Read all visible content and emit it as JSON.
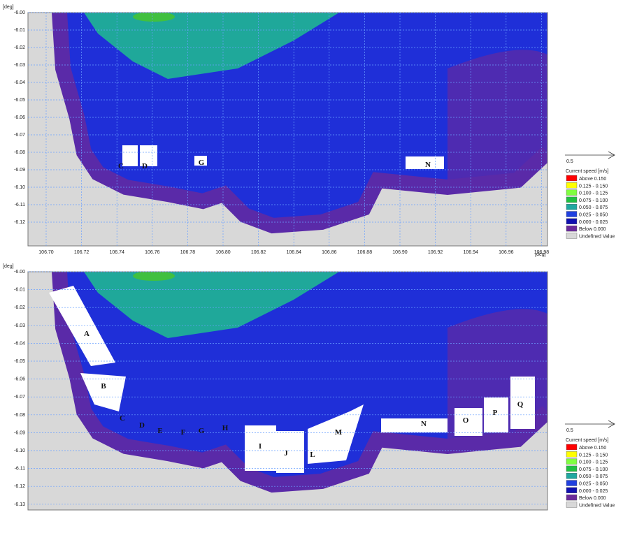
{
  "panels": [
    {
      "y_unit": "[deg]",
      "x_unit": "[deg]",
      "yticks": [
        {
          "value": -6.0,
          "label": "-6.00"
        },
        {
          "value": -6.01,
          "label": "-6.01"
        },
        {
          "value": -6.02,
          "label": "-6.02"
        },
        {
          "value": -6.03,
          "label": "-6.03"
        },
        {
          "value": -6.04,
          "label": "-6.04"
        },
        {
          "value": -6.05,
          "label": "-6.05"
        },
        {
          "value": -6.06,
          "label": "-6.06"
        },
        {
          "value": -6.07,
          "label": "-6.07"
        },
        {
          "value": -6.08,
          "label": "-6.08"
        },
        {
          "value": -6.09,
          "label": "-6.09"
        },
        {
          "value": -6.1,
          "label": "-6.10"
        },
        {
          "value": -6.11,
          "label": "-6.11"
        },
        {
          "value": -6.12,
          "label": "-6.12"
        }
      ],
      "xticks": [
        {
          "value": 106.7,
          "label": "106.70"
        },
        {
          "value": 106.72,
          "label": "106.72"
        },
        {
          "value": 106.74,
          "label": "106.74"
        },
        {
          "value": 106.76,
          "label": "106.76"
        },
        {
          "value": 106.78,
          "label": "106.78"
        },
        {
          "value": 106.8,
          "label": "106.80"
        },
        {
          "value": 106.82,
          "label": "106.82"
        },
        {
          "value": 106.84,
          "label": "106.84"
        },
        {
          "value": 106.86,
          "label": "106.86"
        },
        {
          "value": 106.88,
          "label": "106.88"
        },
        {
          "value": 106.9,
          "label": "106.90"
        },
        {
          "value": 106.92,
          "label": "106.92"
        },
        {
          "value": 106.94,
          "label": "106.94"
        },
        {
          "value": 106.96,
          "label": "106.96"
        },
        {
          "value": 106.98,
          "label": "106.98"
        }
      ],
      "labels": [
        "C",
        "D",
        "G",
        "N"
      ],
      "legend": {
        "scale": "0.5",
        "title": "Current speed [m/s]",
        "items": [
          {
            "label": "Above 0.150",
            "color": "#ff0000"
          },
          {
            "label": "0.125 - 0.150",
            "color": "#ffff00"
          },
          {
            "label": "0.100 - 0.125",
            "color": "#80ff40"
          },
          {
            "label": "0.075 - 0.100",
            "color": "#20c040"
          },
          {
            "label": "0.050 - 0.075",
            "color": "#20a8a0"
          },
          {
            "label": "0.025 - 0.050",
            "color": "#2040e0"
          },
          {
            "label": "0.000 - 0.025",
            "color": "#1010b0"
          },
          {
            "label": "Below 0.000",
            "color": "#6a2a9a"
          },
          {
            "label": "Undefined Value",
            "color": "#d8d8d8"
          }
        ]
      }
    },
    {
      "y_unit": "[deg]",
      "yticks": [
        {
          "value": -6.0,
          "label": "-6.00"
        },
        {
          "value": -6.01,
          "label": "-6.01"
        },
        {
          "value": -6.02,
          "label": "-6.02"
        },
        {
          "value": -6.03,
          "label": "-6.03"
        },
        {
          "value": -6.04,
          "label": "-6.04"
        },
        {
          "value": -6.05,
          "label": "-6.05"
        },
        {
          "value": -6.06,
          "label": "-6.06"
        },
        {
          "value": -6.07,
          "label": "-6.07"
        },
        {
          "value": -6.08,
          "label": "-6.08"
        },
        {
          "value": -6.09,
          "label": "-6.09"
        },
        {
          "value": -6.1,
          "label": "-6.10"
        },
        {
          "value": -6.11,
          "label": "-6.11"
        },
        {
          "value": -6.12,
          "label": "-6.12"
        },
        {
          "value": -6.13,
          "label": "-6.13"
        }
      ],
      "labels": [
        "A",
        "B",
        "C",
        "D",
        "E",
        "F",
        "G",
        "H",
        "I",
        "J",
        "L",
        "M",
        "N",
        "O",
        "P",
        "Q"
      ],
      "legend": {
        "scale": "0.5",
        "title": "Current speed [m/s]",
        "items": [
          {
            "label": "Above 0.150",
            "color": "#ff0000"
          },
          {
            "label": "0.125 - 0.150",
            "color": "#ffff00"
          },
          {
            "label": "0.100 - 0.125",
            "color": "#80ff40"
          },
          {
            "label": "0.075 - 0.100",
            "color": "#20c040"
          },
          {
            "label": "0.050 - 0.075",
            "color": "#20a8a0"
          },
          {
            "label": "0.025 - 0.050",
            "color": "#2040e0"
          },
          {
            "label": "0.000 - 0.025",
            "color": "#1010b0"
          },
          {
            "label": "Below 0.000",
            "color": "#6a2a9a"
          },
          {
            "label": "Undefined Value",
            "color": "#d8d8d8"
          }
        ]
      }
    }
  ]
}
